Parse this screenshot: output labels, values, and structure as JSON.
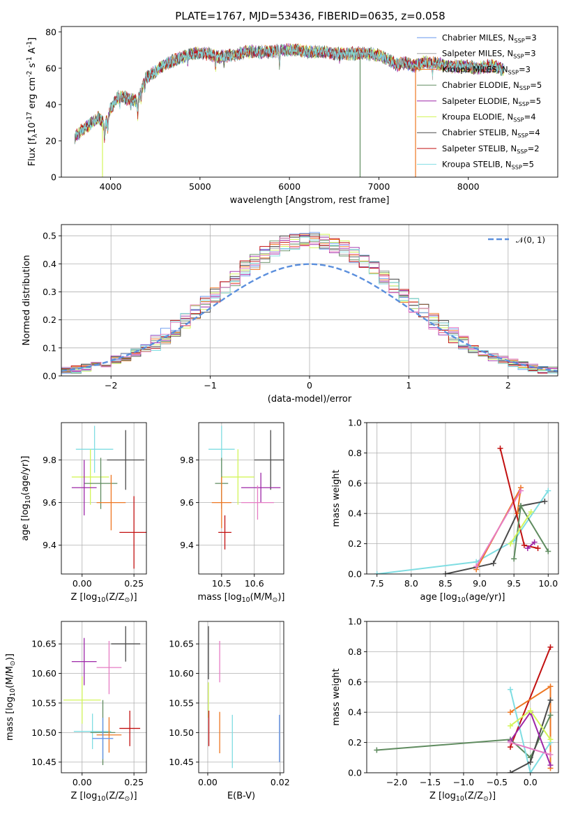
{
  "figure_title": "PLATE=1767, MJD=53436, FIBERID=0635, z=0.058",
  "colors": {
    "Chabrier MILES": "#6495ed",
    "Salpeter MILES": "#a2a2a2",
    "Kroupa MILES": "#ee7621",
    "Chabrier ELODIE": "#5f8b5f",
    "Salpeter ELODIE": "#9d27a7",
    "Kroupa ELODIE": "#d3f55a",
    "Chabrier STELIB": "#4a4a4a",
    "Salpeter STELIB": "#c21010",
    "Kroupa STELIB": "#7fdde2",
    "Pink": "#e67cc4",
    "Normal": "#5b8fdd"
  },
  "chart_data": [
    {
      "id": "spectrum",
      "type": "line",
      "title": "PLATE=1767, MJD=53436, FIBERID=0635, z=0.058",
      "xlabel": "wavelength [Angstrom, rest frame]",
      "ylabel": "Flux [f$_\\lambda$10$^{-17}$ erg cm$^{-2}$ s$^{-1}$ A$^{-1}$]",
      "xlim": [
        3450,
        9000
      ],
      "ylim": [
        0,
        83
      ],
      "xticks": [
        4000,
        5000,
        6000,
        7000,
        8000
      ],
      "yticks": [
        0,
        20,
        40,
        60,
        80
      ],
      "continuum": [
        [
          3600,
          22
        ],
        [
          3700,
          27
        ],
        [
          3800,
          30
        ],
        [
          3870,
          33
        ],
        [
          3940,
          28
        ],
        [
          4000,
          38
        ],
        [
          4100,
          45
        ],
        [
          4200,
          43
        ],
        [
          4300,
          42
        ],
        [
          4400,
          55
        ],
        [
          4500,
          58
        ],
        [
          4600,
          62
        ],
        [
          4700,
          64
        ],
        [
          4800,
          66
        ],
        [
          4900,
          68
        ],
        [
          5000,
          68
        ],
        [
          5100,
          68
        ],
        [
          5200,
          66
        ],
        [
          5300,
          67
        ],
        [
          5400,
          67
        ],
        [
          5500,
          69
        ],
        [
          5600,
          69
        ],
        [
          5700,
          69
        ],
        [
          5800,
          69
        ],
        [
          5900,
          70
        ],
        [
          6000,
          70
        ],
        [
          6100,
          70
        ],
        [
          6200,
          69
        ],
        [
          6300,
          69
        ],
        [
          6400,
          69
        ],
        [
          6500,
          68
        ],
        [
          6600,
          68
        ],
        [
          6700,
          68
        ],
        [
          6800,
          68
        ],
        [
          6900,
          68
        ],
        [
          7000,
          67
        ],
        [
          7100,
          65
        ],
        [
          7200,
          62
        ],
        [
          7300,
          63
        ],
        [
          7400,
          61
        ],
        [
          7500,
          63
        ],
        [
          7600,
          63
        ],
        [
          7700,
          62
        ],
        [
          7800,
          61
        ],
        [
          7900,
          61
        ],
        [
          8000,
          61
        ],
        [
          8100,
          60
        ],
        [
          8200,
          61
        ],
        [
          8300,
          61
        ],
        [
          8400,
          59
        ]
      ],
      "series": [
        {
          "name": "Chabrier MILES, N$_{SSP}$=3",
          "color": "#6495ed"
        },
        {
          "name": "Salpeter MILES, N$_{SSP}$=3",
          "color": "#a2a2a2"
        },
        {
          "name": "Kroupa MILES, N$_{SSP}$=3",
          "color": "#ee7621"
        },
        {
          "name": "Chabrier ELODIE, N$_{SSP}$=5",
          "color": "#5f8b5f"
        },
        {
          "name": "Salpeter ELODIE, N$_{SSP}$=5",
          "color": "#9d27a7"
        },
        {
          "name": "Kroupa ELODIE, N$_{SSP}$=4",
          "color": "#d3f55a"
        },
        {
          "name": "Chabrier STELIB, N$_{SSP}$=4",
          "color": "#4a4a4a"
        },
        {
          "name": "Salpeter STELIB, N$_{SSP}$=2",
          "color": "#c21010"
        },
        {
          "name": "Kroupa STELIB, N$_{SSP}$=5",
          "color": "#7fdde2"
        }
      ],
      "spikes": [
        {
          "x": 3910,
          "y": 0,
          "color": "#d3f55a"
        },
        {
          "x": 6790,
          "y": 0,
          "color": "#5f8b5f"
        },
        {
          "x": 7410,
          "y": 0,
          "color": "#ee7621"
        }
      ],
      "legend": "top-right",
      "grid": false
    },
    {
      "id": "residuals",
      "type": "histogram",
      "xlabel": "(data-model)/error",
      "ylabel": "Normed distribution",
      "xlim": [
        -2.5,
        2.5
      ],
      "ylim": [
        0,
        0.54
      ],
      "xticks": [
        -2,
        -1,
        0,
        1,
        2
      ],
      "yticks": [
        0.0,
        0.1,
        0.2,
        0.3,
        0.4,
        0.5
      ],
      "bins_edges": [
        -2.5,
        2.5
      ],
      "bin_width": 0.1,
      "reference": {
        "name": "$\\mathcal{N}(0, 1)$",
        "type": "gaussian",
        "mu": 0,
        "sigma": 1,
        "color": "#5b8fdd",
        "style": "dashed"
      },
      "legend": "top-right",
      "grid": true
    },
    {
      "id": "age-vs-Z",
      "type": "errorbar",
      "xlabel": "Z [log$_{10}$(Z/Z$_\\odot$)]",
      "ylabel": "age  [log$_{10}$(age/yr)]",
      "xlim": [
        -0.1,
        0.31
      ],
      "ylim": [
        9.265,
        9.975
      ],
      "xticks": [
        0.0,
        0.25
      ],
      "yticks": [
        9.4,
        9.6,
        9.8
      ],
      "grid": true,
      "points": [
        {
          "x": 0.06,
          "xerr": 0.09,
          "y": 9.85,
          "yerr": 0.11,
          "color": "#7fdde2"
        },
        {
          "x": 0.21,
          "xerr": 0.09,
          "y": 9.8,
          "yerr": 0.14,
          "color": "#4a4a4a"
        },
        {
          "x": 0.04,
          "xerr": 0.09,
          "y": 9.72,
          "yerr": 0.13,
          "color": "#d3f55a"
        },
        {
          "x": 0.09,
          "xerr": 0.08,
          "y": 9.69,
          "yerr": 0.12,
          "color": "#5f8b5f"
        },
        {
          "x": 0.01,
          "xerr": 0.06,
          "y": 9.67,
          "yerr": 0.13,
          "color": "#9d27a7"
        },
        {
          "x": 0.14,
          "xerr": 0.07,
          "y": 9.6,
          "yerr": 0.13,
          "color": "#ee7621"
        },
        {
          "x": 0.25,
          "xerr": 0.07,
          "y": 9.46,
          "yerr": 0.17,
          "color": "#c21010"
        }
      ]
    },
    {
      "id": "age-vs-mass",
      "type": "errorbar",
      "xlabel": "mass [log$_{10}$(M/M$_\\odot$)]",
      "ylabel": "",
      "xlim": [
        10.43,
        10.69
      ],
      "ylim": [
        9.265,
        9.975
      ],
      "xticks": [
        10.5,
        10.6
      ],
      "yticks": [
        9.4,
        9.6,
        9.8
      ],
      "grid": true,
      "points": [
        {
          "x": 10.5,
          "xerr": 0.04,
          "y": 9.85,
          "yerr": 0.11,
          "color": "#7fdde2"
        },
        {
          "x": 10.65,
          "xerr": 0.05,
          "y": 9.8,
          "yerr": 0.14,
          "color": "#4a4a4a"
        },
        {
          "x": 10.55,
          "xerr": 0.05,
          "y": 9.72,
          "yerr": 0.13,
          "color": "#d3f55a"
        },
        {
          "x": 10.5,
          "xerr": 0.02,
          "y": 9.69,
          "yerr": 0.12,
          "color": "#5f8b5f"
        },
        {
          "x": 10.62,
          "xerr": 0.06,
          "y": 9.67,
          "yerr": 0.07,
          "color": "#9d27a7"
        },
        {
          "x": 10.61,
          "xerr": 0.05,
          "y": 9.6,
          "yerr": 0.08,
          "color": "#e67cc4"
        },
        {
          "x": 10.5,
          "xerr": 0.03,
          "y": 9.6,
          "yerr": 0.12,
          "color": "#ee7621"
        },
        {
          "x": 10.51,
          "xerr": 0.02,
          "y": 9.46,
          "yerr": 0.08,
          "color": "#c21010"
        }
      ]
    },
    {
      "id": "weight-vs-age",
      "type": "line",
      "xlabel": "age  [log$_{10}$(age/yr)]",
      "ylabel": "mass weight",
      "xlim": [
        7.35,
        10.15
      ],
      "ylim": [
        0,
        1
      ],
      "xticks": [
        7.5,
        8.0,
        8.5,
        9.0,
        9.5,
        10.0
      ],
      "yticks": [
        0.0,
        0.2,
        0.4,
        0.6,
        0.8,
        1.0
      ],
      "grid": true,
      "series": [
        {
          "color": "#7fdde2",
          "points": [
            [
              7.5,
              0.0
            ],
            [
              8.95,
              0.08
            ],
            [
              9.5,
              0.22
            ],
            [
              10.0,
              0.55
            ]
          ]
        },
        {
          "color": "#4a4a4a",
          "points": [
            [
              8.5,
              0.0
            ],
            [
              9.2,
              0.07
            ],
            [
              9.6,
              0.45
            ],
            [
              9.95,
              0.48
            ]
          ]
        },
        {
          "color": "#ee7621",
          "points": [
            [
              8.95,
              0.03
            ],
            [
              9.6,
              0.57
            ],
            [
              9.55,
              0.4
            ]
          ]
        },
        {
          "color": "#e67cc4",
          "points": [
            [
              8.95,
              0.05
            ],
            [
              9.6,
              0.55
            ]
          ]
        },
        {
          "color": "#c21010",
          "points": [
            [
              9.3,
              0.83
            ],
            [
              9.65,
              0.19
            ],
            [
              9.85,
              0.17
            ]
          ]
        },
        {
          "color": "#5f8b5f",
          "points": [
            [
              9.5,
              0.1
            ],
            [
              9.6,
              0.45
            ],
            [
              10.0,
              0.15
            ]
          ]
        },
        {
          "color": "#9d27a7",
          "points": [
            [
              9.7,
              0.17
            ],
            [
              9.8,
              0.21
            ]
          ]
        },
        {
          "color": "#d3f55a",
          "points": [
            [
              9.45,
              0.2
            ],
            [
              9.75,
              0.41
            ]
          ]
        }
      ]
    },
    {
      "id": "mass-vs-Z",
      "type": "errorbar",
      "xlabel": "Z [log$_{10}$(Z/Z$_\\odot$)]",
      "ylabel": "mass [log$_{10}$(M/M$_\\odot$)]",
      "xlim": [
        -0.1,
        0.31
      ],
      "ylim": [
        10.432,
        10.688
      ],
      "xticks": [
        0.0,
        0.25
      ],
      "yticks": [
        10.45,
        10.5,
        10.55,
        10.6,
        10.65
      ],
      "grid": true,
      "points": [
        {
          "x": 0.21,
          "xerr": 0.07,
          "y": 10.65,
          "yerr": 0.03,
          "color": "#4a4a4a"
        },
        {
          "x": 0.01,
          "xerr": 0.06,
          "y": 10.62,
          "yerr": 0.04,
          "color": "#9d27a7"
        },
        {
          "x": 0.13,
          "xerr": 0.06,
          "y": 10.61,
          "yerr": 0.045,
          "color": "#e67cc4"
        },
        {
          "x": 0.0,
          "xerr": 0.09,
          "y": 10.555,
          "yerr": 0.04,
          "color": "#d3f55a"
        },
        {
          "x": 0.23,
          "xerr": 0.05,
          "y": 10.507,
          "yerr": 0.03,
          "color": "#c21010"
        },
        {
          "x": 0.05,
          "xerr": 0.09,
          "y": 10.502,
          "yerr": 0.03,
          "color": "#7fdde2"
        },
        {
          "x": 0.1,
          "xerr": 0.06,
          "y": 10.5,
          "yerr": 0.055,
          "color": "#5f8b5f"
        },
        {
          "x": 0.13,
          "xerr": 0.06,
          "y": 10.496,
          "yerr": 0.03,
          "color": "#ee7621"
        },
        {
          "x": 0.1,
          "xerr": 0.05,
          "y": 10.49,
          "yerr": 0.035,
          "color": "#6495ed"
        }
      ]
    },
    {
      "id": "mass-vs-EBV",
      "type": "errorbar",
      "xlabel": "E(B-V)",
      "ylabel": "",
      "xlim": [
        -0.0025,
        0.021
      ],
      "ylim": [
        10.432,
        10.688
      ],
      "xticks": [
        0.0,
        0.02
      ],
      "yticks": [
        10.45,
        10.5,
        10.55,
        10.6,
        10.65
      ],
      "grid": true,
      "points": [
        {
          "x": 0.0002,
          "y": 10.635,
          "yerr": 0.045,
          "color": "#4a4a4a"
        },
        {
          "x": 0.0002,
          "y": 10.555,
          "yerr": 0.03,
          "color": "#d3f55a"
        },
        {
          "x": 0.0003,
          "y": 10.507,
          "yerr": 0.03,
          "color": "#c21010"
        },
        {
          "x": 0.0033,
          "y": 10.62,
          "yerr": 0.035,
          "color": "#e67cc4"
        },
        {
          "x": 0.0033,
          "y": 10.5,
          "yerr": 0.035,
          "color": "#ee7621"
        },
        {
          "x": 0.0068,
          "y": 10.485,
          "yerr": 0.045,
          "color": "#7fdde2"
        },
        {
          "x": 0.0198,
          "y": 10.49,
          "yerr": 0.04,
          "color": "#6495ed"
        }
      ]
    },
    {
      "id": "weight-vs-Z",
      "type": "line",
      "xlabel": "Z [log$_{10}$(Z/Z$_\\odot$)]",
      "ylabel": "mass weight",
      "xlim": [
        -2.45,
        0.42
      ],
      "ylim": [
        0,
        1
      ],
      "xticks": [
        -2.0,
        -1.5,
        -1.0,
        -0.5,
        0.0
      ],
      "yticks": [
        0.0,
        0.2,
        0.4,
        0.6,
        0.8,
        1.0
      ],
      "grid": true,
      "series": [
        {
          "color": "#c21010",
          "points": [
            [
              -0.3,
              0.17
            ],
            [
              0.3,
              0.83
            ]
          ]
        },
        {
          "color": "#ee7621",
          "points": [
            [
              -0.3,
              0.4
            ],
            [
              0.3,
              0.57
            ],
            [
              0.3,
              0.03
            ]
          ]
        },
        {
          "color": "#5f8b5f",
          "points": [
            [
              -2.3,
              0.15
            ],
            [
              -0.3,
              0.22
            ],
            [
              0.0,
              0.1
            ],
            [
              0.3,
              0.38
            ]
          ]
        },
        {
          "color": "#7fdde2",
          "points": [
            [
              -0.3,
              0.55
            ],
            [
              0.0,
              0.0
            ],
            [
              0.3,
              0.2
            ]
          ]
        },
        {
          "color": "#4a4a4a",
          "points": [
            [
              -0.3,
              0.0
            ],
            [
              0.0,
              0.07
            ],
            [
              0.3,
              0.48
            ]
          ]
        },
        {
          "color": "#9d27a7",
          "points": [
            [
              -0.3,
              0.21
            ],
            [
              0.0,
              0.4
            ],
            [
              0.3,
              0.05
            ]
          ]
        },
        {
          "color": "#d3f55a",
          "points": [
            [
              -0.3,
              0.31
            ],
            [
              0.0,
              0.41
            ],
            [
              0.3,
              0.22
            ]
          ]
        },
        {
          "color": "#e67cc4",
          "points": [
            [
              -0.3,
              0.2
            ],
            [
              0.3,
              0.12
            ]
          ]
        }
      ]
    }
  ]
}
